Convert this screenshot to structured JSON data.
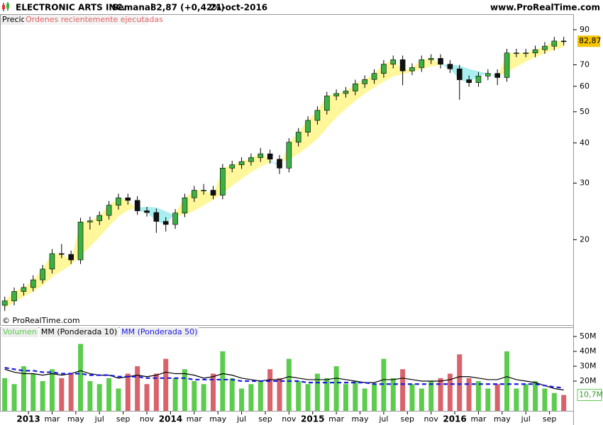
{
  "header": {
    "title": "ELECTRONIC ARTS INC.",
    "period": "Semanal",
    "change": "82,87 (+0,42%)",
    "date": "21-oct-2016",
    "site": "www.ProRealTime.com"
  },
  "chart_data": [
    {
      "type": "candlestick",
      "labels": [
        "Precio",
        "Ordenes recientemente ejecutadas"
      ],
      "watermark": "© ProRealTime.com",
      "x": [
        -2,
        -1.2,
        -0.4,
        0.4,
        1.2,
        2,
        2.8,
        3.6,
        4.4,
        5.2,
        6,
        6.8,
        7.6,
        8.4,
        9.2,
        10,
        10.8,
        11.6,
        12.4,
        13.2,
        14,
        14.8,
        15.6,
        16.4,
        17.2,
        18,
        18.8,
        19.6,
        20.4,
        21.2,
        22,
        22.8,
        23.6,
        24.4,
        25.2,
        26,
        26.8,
        27.6,
        28.4,
        29.2,
        30,
        30.8,
        31.6,
        32.4,
        33.2,
        34,
        34.8,
        35.6,
        36.4,
        37.2,
        38,
        38.8,
        39.6,
        40.4,
        41.2,
        42,
        42.8,
        43.6,
        44.4,
        45.2
      ],
      "open": [
        12.5,
        12.9,
        13.8,
        14.2,
        15.0,
        16.2,
        18.1,
        18.0,
        17.3,
        22.7,
        22.9,
        23.8,
        25.6,
        27.0,
        26.5,
        24.6,
        24.3,
        22.8,
        22.3,
        24.2,
        27.0,
        28.5,
        28.5,
        27.5,
        33.4,
        34.2,
        35.0,
        36.0,
        37.0,
        35.6,
        33.4,
        40.2,
        43.2,
        47.0,
        50.5,
        56.0,
        57.0,
        58.0,
        61.1,
        63.0,
        65.8,
        70.3,
        72.6,
        67.0,
        68.6,
        72.6,
        73.3,
        70.3,
        68.0,
        62.9,
        61.6,
        64.6,
        65.8,
        63.9,
        76.2,
        76.2,
        76.2,
        78.0,
        80.0,
        83.0
      ],
      "high": [
        13.3,
        14.2,
        14.6,
        15.5,
        16.7,
        18.7,
        19.4,
        18.5,
        23.4,
        23.6,
        24.5,
        26.4,
        27.8,
        27.8,
        27.3,
        25.3,
        25.0,
        23.5,
        24.9,
        27.8,
        29.4,
        29.8,
        29.4,
        34.4,
        35.2,
        36.1,
        37.1,
        38.6,
        38.1,
        36.7,
        41.4,
        44.5,
        48.4,
        52.0,
        57.7,
        58.7,
        59.7,
        62.9,
        64.9,
        67.8,
        72.4,
        74.8,
        74.8,
        70.7,
        74.8,
        75.5,
        75.5,
        72.4,
        70.0,
        64.8,
        66.5,
        67.8,
        67.8,
        78.5,
        78.5,
        78.5,
        80.3,
        82.4,
        85.5,
        85.5
      ],
      "low": [
        12.0,
        12.5,
        13.4,
        13.8,
        14.6,
        15.7,
        17.5,
        16.8,
        16.8,
        21.5,
        22.2,
        23.1,
        24.8,
        25.7,
        23.9,
        23.6,
        21.0,
        21.2,
        21.6,
        23.5,
        26.2,
        27.6,
        26.7,
        26.7,
        32.4,
        33.2,
        34.0,
        34.9,
        34.5,
        32.0,
        32.4,
        39.0,
        41.9,
        45.6,
        49.0,
        54.3,
        55.3,
        56.3,
        59.3,
        61.1,
        63.8,
        68.2,
        60.5,
        65.0,
        66.5,
        70.4,
        68.2,
        66.0,
        54.5,
        59.8,
        59.8,
        62.7,
        60.5,
        62.0,
        73.9,
        73.9,
        73.9,
        75.7,
        77.6,
        80.4
      ],
      "close": [
        12.9,
        13.8,
        14.2,
        15.0,
        16.2,
        18.1,
        18.0,
        17.3,
        22.7,
        22.9,
        23.8,
        25.6,
        27.0,
        26.5,
        24.6,
        24.3,
        22.8,
        22.3,
        24.2,
        27.0,
        28.5,
        28.5,
        27.5,
        33.4,
        34.2,
        35.0,
        36.0,
        37.0,
        35.6,
        33.4,
        40.2,
        43.2,
        47.0,
        50.5,
        56.0,
        57.0,
        58.0,
        61.1,
        63.0,
        65.8,
        70.3,
        72.6,
        67.0,
        68.6,
        72.6,
        73.3,
        70.3,
        68.0,
        62.9,
        61.6,
        64.6,
        65.8,
        63.9,
        76.2,
        76.2,
        76.2,
        78.0,
        80.0,
        83.0,
        82.87
      ],
      "band": {
        "up_color": "#fff79a",
        "down_color": "#a9eef0",
        "values": [
          12.2,
          12.8,
          13.3,
          13.8,
          14.4,
          15.3,
          16.0,
          16.7,
          17.8,
          19.0,
          20.4,
          22.0,
          23.6,
          24.7,
          25.2,
          25.3,
          25.2,
          24.5,
          23.8,
          23.9,
          24.6,
          25.6,
          26.6,
          27.9,
          29.4,
          30.9,
          32.4,
          33.8,
          34.7,
          34.8,
          35.6,
          37.0,
          38.9,
          41.2,
          44.5,
          48.0,
          51.0,
          54.0,
          57.0,
          59.5,
          62.0,
          64.5,
          65.5,
          66.5,
          68.0,
          69.2,
          70.0,
          70.2,
          69.5,
          68.0,
          66.8,
          65.8,
          64.6,
          66.5,
          69.0,
          71.5,
          74.0,
          76.0,
          78.0,
          79.5
        ]
      },
      "up_color": "#3cb043",
      "down_color": "#111111",
      "log_scale": true,
      "ylim": [
        10.9,
        96.6
      ],
      "yticks": [
        20,
        30,
        40,
        50,
        60,
        70,
        90
      ],
      "last_value": {
        "value": 82.87,
        "label": "82,87"
      },
      "xlim": [
        -2.4,
        46
      ]
    },
    {
      "type": "bar",
      "x": [
        -2,
        -1.2,
        -0.4,
        0.4,
        1.2,
        2,
        2.8,
        3.6,
        4.4,
        5.2,
        6,
        6.8,
        7.6,
        8.4,
        9.2,
        10,
        10.8,
        11.6,
        12.4,
        13.2,
        14,
        14.8,
        15.6,
        16.4,
        17.2,
        18,
        18.8,
        19.6,
        20.4,
        21.2,
        22,
        22.8,
        23.6,
        24.4,
        25.2,
        26,
        26.8,
        27.6,
        28.4,
        29.2,
        30,
        30.8,
        31.6,
        32.4,
        33.2,
        34,
        34.8,
        35.6,
        36.4,
        37.2,
        38,
        38.8,
        39.6,
        40.4,
        41.2,
        42,
        42.8,
        43.6,
        44.4,
        45.2
      ],
      "series": [
        {
          "name": "Volumen",
          "color": "#5ccc4e",
          "down_color": "#d9636b",
          "values": [
            22,
            18,
            30,
            25,
            20,
            28,
            22,
            25,
            45,
            20,
            18,
            22,
            15,
            25,
            30,
            18,
            25,
            35,
            22,
            28,
            20,
            18,
            25,
            40,
            22,
            15,
            18,
            20,
            28,
            22,
            35,
            20,
            18,
            25,
            22,
            30,
            18,
            20,
            15,
            18,
            35,
            22,
            28,
            18,
            15,
            20,
            22,
            25,
            38,
            22,
            20,
            15,
            18,
            40,
            15,
            18,
            20,
            15,
            12,
            10.7
          ]
        },
        {
          "name": "MM (Ponderada 10)",
          "color": "#000000",
          "values": [
            28,
            26,
            25,
            25,
            24,
            25,
            24,
            25,
            27,
            25,
            24,
            24,
            22,
            23,
            24,
            23,
            24,
            26,
            25,
            25,
            24,
            22,
            23,
            25,
            24,
            22,
            21,
            20,
            21,
            21,
            23,
            22,
            21,
            21,
            21,
            22,
            21,
            20,
            19,
            19,
            21,
            21,
            22,
            21,
            20,
            20,
            20,
            21,
            23,
            23,
            22,
            21,
            21,
            23,
            21,
            20,
            19,
            17,
            15,
            14
          ]
        },
        {
          "name": "MM (Ponderada 50)",
          "color": "#1a1ae0",
          "dashed": true,
          "values": [
            29,
            28,
            27,
            27,
            26,
            26,
            25,
            25,
            25,
            24,
            24,
            24,
            23,
            23,
            23,
            22,
            22,
            22,
            22,
            22,
            21,
            21,
            21,
            21,
            21,
            20,
            20,
            20,
            20,
            20,
            20,
            20,
            19,
            19,
            19,
            19,
            19,
            19,
            19,
            18,
            18,
            18,
            18,
            18,
            18,
            18,
            18,
            18,
            18,
            18,
            18,
            18,
            18,
            18,
            18,
            18,
            18,
            17,
            16,
            15.5
          ]
        }
      ],
      "ylim": [
        0,
        54.8
      ],
      "yticks": [
        {
          "value": 20,
          "label": "20M"
        },
        {
          "value": 30,
          "label": "30M"
        },
        {
          "value": 40,
          "label": "40M"
        },
        {
          "value": 50,
          "label": "50M"
        }
      ],
      "last_value": {
        "value": 10.7,
        "label": "10,7M"
      },
      "xlim": [
        -2.4,
        46
      ],
      "xticks": [
        {
          "value": 0,
          "label": "2013"
        },
        {
          "value": 2,
          "label": "mar"
        },
        {
          "value": 4,
          "label": "may"
        },
        {
          "value": 6,
          "label": "jul"
        },
        {
          "value": 8,
          "label": "sep"
        },
        {
          "value": 10,
          "label": "nov"
        },
        {
          "value": 12,
          "label": "2014"
        },
        {
          "value": 14,
          "label": "mar"
        },
        {
          "value": 16,
          "label": "may"
        },
        {
          "value": 18,
          "label": "jul"
        },
        {
          "value": 20,
          "label": "sep"
        },
        {
          "value": 22,
          "label": "nov"
        },
        {
          "value": 24,
          "label": "2015"
        },
        {
          "value": 26,
          "label": "mar"
        },
        {
          "value": 28,
          "label": "may"
        },
        {
          "value": 30,
          "label": "jul"
        },
        {
          "value": 32,
          "label": "sep"
        },
        {
          "value": 34,
          "label": "nov"
        },
        {
          "value": 36,
          "label": "2016"
        },
        {
          "value": 38,
          "label": "mar"
        },
        {
          "value": 40,
          "label": "may"
        },
        {
          "value": 42,
          "label": "jul"
        },
        {
          "value": 44,
          "label": "sep"
        }
      ]
    }
  ]
}
